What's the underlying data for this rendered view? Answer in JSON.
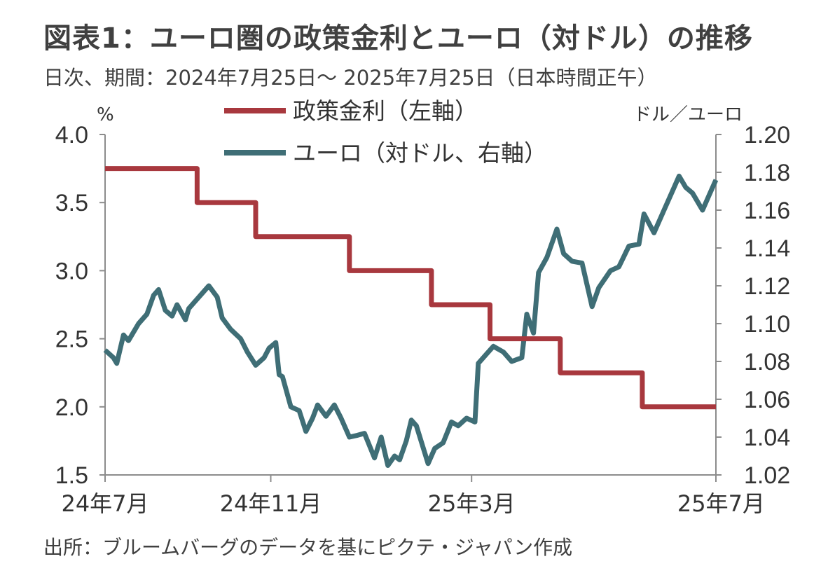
{
  "title": "図表1：ユーロ圏の政策金利とユーロ（対ドル）の推移",
  "subtitle": "日次、期間：2024年7月25日～ 2025年7月25日（日本時間正午）",
  "source": "出所：ブルームバーグのデータを基にピクテ・ジャパン作成",
  "chart_data": {
    "type": "line",
    "left_axis": {
      "unit_label": "%",
      "ylim": [
        1.5,
        4.0
      ],
      "ticks": [
        "4.0",
        "3.5",
        "3.0",
        "2.5",
        "2.0",
        "1.5"
      ]
    },
    "right_axis": {
      "unit_label": "ドル／ユーロ",
      "ylim": [
        1.02,
        1.2
      ],
      "ticks": [
        "1.20",
        "1.18",
        "1.16",
        "1.14",
        "1.12",
        "1.10",
        "1.08",
        "1.06",
        "1.04",
        "1.02"
      ]
    },
    "x_axis": {
      "start": "2024-07-25",
      "end": "2025-07-25",
      "tick_labels": [
        "24年7月",
        "24年11月",
        "25年3月",
        "25年7月"
      ],
      "tick_dates": [
        "2024-07-25",
        "2024-11-01",
        "2025-03-01",
        "2025-07-25"
      ]
    },
    "legend": {
      "placement": "top-center"
    },
    "colors": {
      "policy_rate": "#A8383E",
      "eur_usd": "#3F6E76",
      "axis": "#8c8c8c"
    },
    "series": [
      {
        "name": "政策金利（左軸）",
        "axis": "left",
        "step": true,
        "points": [
          [
            "2024-07-25",
            3.75
          ],
          [
            "2024-09-18",
            3.5
          ],
          [
            "2024-10-23",
            3.25
          ],
          [
            "2024-12-18",
            3.0
          ],
          [
            "2025-02-05",
            2.75
          ],
          [
            "2025-03-12",
            2.5
          ],
          [
            "2025-04-23",
            2.25
          ],
          [
            "2025-06-11",
            2.0
          ],
          [
            "2025-07-25",
            2.0
          ]
        ]
      },
      {
        "name": "ユーロ（対ドル、右軸）",
        "axis": "right",
        "points": [
          [
            "2024-07-25",
            1.086
          ],
          [
            "2024-07-30",
            1.082
          ],
          [
            "2024-08-01",
            1.079
          ],
          [
            "2024-08-05",
            1.094
          ],
          [
            "2024-08-08",
            1.091
          ],
          [
            "2024-08-14",
            1.1
          ],
          [
            "2024-08-19",
            1.105
          ],
          [
            "2024-08-23",
            1.115
          ],
          [
            "2024-08-26",
            1.118
          ],
          [
            "2024-08-30",
            1.107
          ],
          [
            "2024-09-03",
            1.104
          ],
          [
            "2024-09-06",
            1.11
          ],
          [
            "2024-09-11",
            1.102
          ],
          [
            "2024-09-13",
            1.108
          ],
          [
            "2024-09-18",
            1.113
          ],
          [
            "2024-09-20",
            1.115
          ],
          [
            "2024-09-25",
            1.12
          ],
          [
            "2024-09-30",
            1.114
          ],
          [
            "2024-10-03",
            1.103
          ],
          [
            "2024-10-08",
            1.097
          ],
          [
            "2024-10-14",
            1.092
          ],
          [
            "2024-10-18",
            1.085
          ],
          [
            "2024-10-23",
            1.078
          ],
          [
            "2024-10-28",
            1.082
          ],
          [
            "2024-10-31",
            1.087
          ],
          [
            "2024-11-04",
            1.09
          ],
          [
            "2024-11-06",
            1.073
          ],
          [
            "2024-11-08",
            1.072
          ],
          [
            "2024-11-13",
            1.056
          ],
          [
            "2024-11-18",
            1.054
          ],
          [
            "2024-11-22",
            1.043
          ],
          [
            "2024-11-26",
            1.05
          ],
          [
            "2024-11-29",
            1.057
          ],
          [
            "2024-12-04",
            1.051
          ],
          [
            "2024-12-09",
            1.057
          ],
          [
            "2024-12-13",
            1.05
          ],
          [
            "2024-12-18",
            1.04
          ],
          [
            "2024-12-23",
            1.041
          ],
          [
            "2024-12-27",
            1.042
          ],
          [
            "2025-01-02",
            1.029
          ],
          [
            "2025-01-06",
            1.04
          ],
          [
            "2025-01-10",
            1.025
          ],
          [
            "2025-01-14",
            1.03
          ],
          [
            "2025-01-17",
            1.028
          ],
          [
            "2025-01-21",
            1.038
          ],
          [
            "2025-01-24",
            1.049
          ],
          [
            "2025-01-27",
            1.046
          ],
          [
            "2025-02-03",
            1.026
          ],
          [
            "2025-02-07",
            1.034
          ],
          [
            "2025-02-12",
            1.037
          ],
          [
            "2025-02-17",
            1.048
          ],
          [
            "2025-02-21",
            1.046
          ],
          [
            "2025-02-26",
            1.05
          ],
          [
            "2025-03-03",
            1.048
          ],
          [
            "2025-03-05",
            1.079
          ],
          [
            "2025-03-10",
            1.084
          ],
          [
            "2025-03-14",
            1.088
          ],
          [
            "2025-03-20",
            1.085
          ],
          [
            "2025-03-25",
            1.08
          ],
          [
            "2025-03-31",
            1.082
          ],
          [
            "2025-04-03",
            1.105
          ],
          [
            "2025-04-07",
            1.095
          ],
          [
            "2025-04-10",
            1.127
          ],
          [
            "2025-04-15",
            1.135
          ],
          [
            "2025-04-21",
            1.15
          ],
          [
            "2025-04-25",
            1.137
          ],
          [
            "2025-04-30",
            1.133
          ],
          [
            "2025-05-06",
            1.132
          ],
          [
            "2025-05-12",
            1.109
          ],
          [
            "2025-05-16",
            1.119
          ],
          [
            "2025-05-23",
            1.128
          ],
          [
            "2025-05-28",
            1.13
          ],
          [
            "2025-06-03",
            1.141
          ],
          [
            "2025-06-09",
            1.142
          ],
          [
            "2025-06-12",
            1.158
          ],
          [
            "2025-06-18",
            1.148
          ],
          [
            "2025-06-24",
            1.16
          ],
          [
            "2025-06-30",
            1.172
          ],
          [
            "2025-07-03",
            1.178
          ],
          [
            "2025-07-07",
            1.172
          ],
          [
            "2025-07-11",
            1.169
          ],
          [
            "2025-07-17",
            1.16
          ],
          [
            "2025-07-21",
            1.168
          ],
          [
            "2025-07-25",
            1.176
          ]
        ]
      }
    ]
  }
}
